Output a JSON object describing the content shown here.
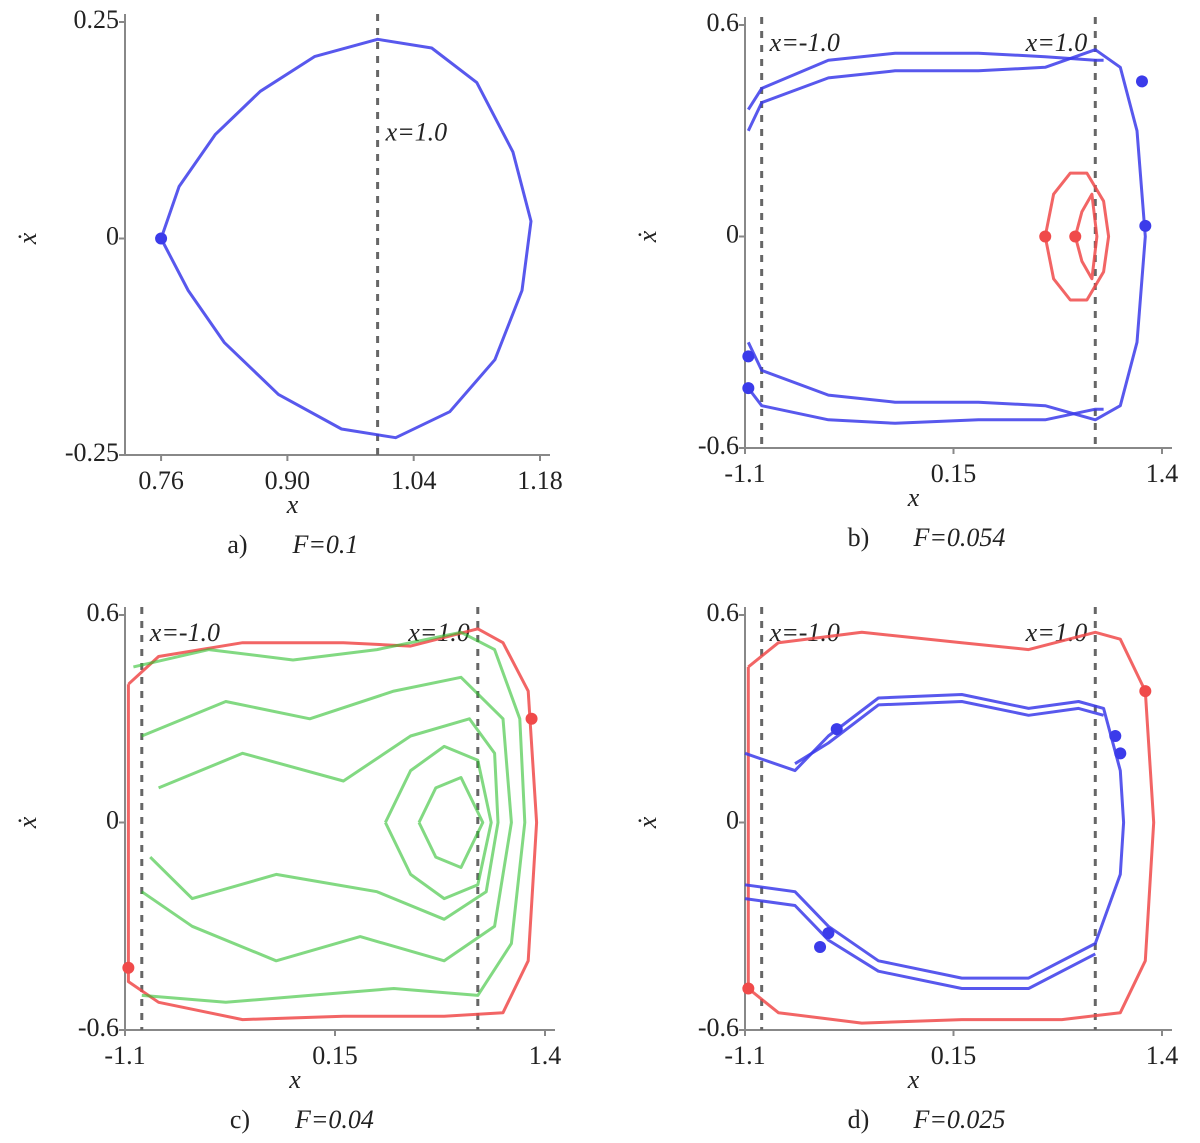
{
  "chart_data": [
    {
      "type": "line",
      "caption_letter": "a)",
      "caption": "F=0.1",
      "xlabel": "x",
      "ylabel": "ẋ",
      "xlim": [
        0.72,
        1.18
      ],
      "ylim": [
        -0.25,
        0.25
      ],
      "xticks": [
        0.76,
        {
          "value": 0.9,
          "label": "0.90"
        },
        1.04,
        1.18
      ],
      "yticks": [
        -0.25,
        0,
        0.25
      ],
      "vlines": [
        {
          "x": 1.0,
          "label": "x=1.0"
        }
      ],
      "series": [
        {
          "color": "#3b3bea",
          "x": [
            0.76,
            0.78,
            0.82,
            0.87,
            0.93,
            1.0,
            1.06,
            1.11,
            1.15,
            1.17,
            1.16,
            1.13,
            1.08,
            1.02,
            0.96,
            0.89,
            0.83,
            0.79,
            0.76
          ],
          "values": [
            0,
            0.06,
            0.12,
            0.17,
            0.21,
            0.23,
            0.22,
            0.18,
            0.1,
            0.02,
            -0.06,
            -0.14,
            -0.2,
            -0.23,
            -0.22,
            -0.18,
            -0.12,
            -0.06,
            0
          ]
        }
      ],
      "points": [
        {
          "color": "#3b3bea",
          "x": [
            0.76
          ],
          "values": [
            0
          ]
        }
      ]
    },
    {
      "type": "line",
      "caption_letter": "b)",
      "caption": "F=0.054",
      "xlabel": "x",
      "ylabel": "ẋ",
      "xlim": [
        -1.1,
        1.4
      ],
      "ylim": [
        -0.6,
        0.6
      ],
      "xticks": [
        -1.1,
        0.15,
        1.4
      ],
      "yticks": [
        -0.6,
        0,
        0.6
      ],
      "vlines": [
        {
          "x": -1.0,
          "label": "x=-1.0"
        },
        {
          "x": 1.0,
          "label": "x=1.0"
        }
      ],
      "series": [
        {
          "color": "#3b3bea",
          "x": [
            -1.08,
            -1.0,
            -0.6,
            -0.2,
            0.3,
            0.7,
            1.0,
            1.15,
            1.25,
            1.3,
            1.25,
            1.15,
            1.0,
            0.7,
            0.3,
            -0.2,
            -0.6,
            -1.0,
            -1.08
          ],
          "values": [
            0.3,
            0.38,
            0.45,
            0.47,
            0.47,
            0.48,
            0.53,
            0.48,
            0.3,
            0,
            -0.3,
            -0.48,
            -0.52,
            -0.48,
            -0.47,
            -0.47,
            -0.45,
            -0.38,
            -0.3
          ]
        },
        {
          "color": "#3b3bea",
          "x": [
            -1.08,
            -1.0,
            -0.6,
            -0.2,
            0.3,
            0.7,
            1.0,
            1.05
          ],
          "values": [
            0.36,
            0.42,
            0.5,
            0.52,
            0.52,
            0.51,
            0.5,
            0.5
          ]
        },
        {
          "color": "#3b3bea",
          "x": [
            -1.08,
            -1.0,
            -0.6,
            -0.2,
            0.3,
            0.7,
            1.0,
            1.05
          ],
          "values": [
            -0.43,
            -0.48,
            -0.52,
            -0.53,
            -0.52,
            -0.52,
            -0.49,
            -0.49
          ]
        },
        {
          "color": "#f04a4a",
          "x": [
            0.7,
            0.75,
            0.85,
            0.95,
            1.05,
            1.08,
            1.05,
            0.95,
            0.85,
            0.75,
            0.7
          ],
          "values": [
            0,
            0.12,
            0.18,
            0.18,
            0.1,
            0,
            -0.1,
            -0.18,
            -0.18,
            -0.12,
            0
          ]
        },
        {
          "color": "#f04a4a",
          "x": [
            0.88,
            0.92,
            0.98,
            1.01,
            0.98,
            0.92,
            0.88
          ],
          "values": [
            0,
            0.07,
            0.12,
            0,
            -0.12,
            -0.07,
            0
          ]
        }
      ],
      "points": [
        {
          "color": "#3b3bea",
          "x": [
            1.28,
            1.3,
            -1.08,
            -1.08
          ],
          "values": [
            0.44,
            0.03,
            -0.34,
            -0.43
          ]
        },
        {
          "color": "#f04a4a",
          "x": [
            0.7,
            0.88
          ],
          "values": [
            0,
            0
          ]
        }
      ]
    },
    {
      "type": "line",
      "caption_letter": "c)",
      "caption": "F=0.04",
      "xlabel": "x",
      "ylabel": "ẋ",
      "xlim": [
        -1.1,
        1.4
      ],
      "ylim": [
        -0.6,
        0.6
      ],
      "xticks": [
        -1.1,
        0.15,
        1.4
      ],
      "yticks": [
        -0.6,
        0,
        0.6
      ],
      "vlines": [
        {
          "x": -1.0,
          "label": "x=-1.0"
        },
        {
          "x": 1.0,
          "label": "x=1.0"
        }
      ],
      "series": [
        {
          "color": "#f04a4a",
          "x": [
            -1.08,
            -0.9,
            -0.4,
            0.2,
            0.6,
            1.0,
            1.15,
            1.3,
            1.35,
            1.3,
            1.15,
            0.8,
            0.2,
            -0.4,
            -0.9,
            -1.08,
            -1.08
          ],
          "values": [
            0.4,
            0.48,
            0.52,
            0.52,
            0.51,
            0.56,
            0.52,
            0.38,
            0,
            -0.4,
            -0.55,
            -0.56,
            -0.56,
            -0.57,
            -0.52,
            -0.46,
            0.4
          ]
        },
        {
          "color": "#2ec02e",
          "x": [
            -1.05,
            -0.6,
            -0.1,
            0.4,
            0.9,
            1.1,
            1.25,
            1.28,
            1.2,
            1.0,
            0.5,
            0.0,
            -0.5,
            -1.0
          ],
          "values": [
            0.45,
            0.5,
            0.47,
            0.5,
            0.55,
            0.5,
            0.3,
            0,
            -0.35,
            -0.5,
            -0.48,
            -0.5,
            -0.52,
            -0.5
          ]
        },
        {
          "color": "#2ec02e",
          "x": [
            -1.0,
            -0.5,
            0.0,
            0.5,
            0.9,
            1.15,
            1.2,
            1.1,
            0.8,
            0.3,
            -0.2,
            -0.7,
            -1.0
          ],
          "values": [
            0.25,
            0.35,
            0.3,
            0.38,
            0.42,
            0.3,
            0,
            -0.3,
            -0.4,
            -0.33,
            -0.4,
            -0.3,
            -0.2
          ]
        },
        {
          "color": "#2ec02e",
          "x": [
            -0.9,
            -0.4,
            0.2,
            0.6,
            0.95,
            1.1,
            1.12,
            1.05,
            0.8,
            0.4,
            -0.2,
            -0.7,
            -0.95
          ],
          "values": [
            0.1,
            0.2,
            0.12,
            0.25,
            0.3,
            0.2,
            0,
            -0.2,
            -0.28,
            -0.2,
            -0.15,
            -0.22,
            -0.1
          ]
        },
        {
          "color": "#2ec02e",
          "x": [
            0.45,
            0.6,
            0.8,
            1.0,
            1.08,
            1.0,
            0.8,
            0.6,
            0.45
          ],
          "values": [
            0,
            0.15,
            0.22,
            0.18,
            0,
            -0.18,
            -0.22,
            -0.15,
            0
          ]
        },
        {
          "color": "#2ec02e",
          "x": [
            0.65,
            0.75,
            0.9,
            1.03,
            0.9,
            0.75,
            0.65
          ],
          "values": [
            0,
            0.1,
            0.13,
            0,
            -0.13,
            -0.1,
            0
          ]
        }
      ],
      "points": [
        {
          "color": "#f04a4a",
          "x": [
            1.32,
            -1.08
          ],
          "values": [
            0.3,
            -0.42
          ]
        }
      ]
    },
    {
      "type": "line",
      "caption_letter": "d)",
      "caption": "F=0.025",
      "xlabel": "x",
      "ylabel": "ẋ",
      "xlim": [
        -1.1,
        1.4
      ],
      "ylim": [
        -0.6,
        0.6
      ],
      "xticks": [
        -1.1,
        0.15,
        1.4
      ],
      "yticks": [
        -0.6,
        0,
        0.6
      ],
      "vlines": [
        {
          "x": -1.0,
          "label": "x=-1.0"
        },
        {
          "x": 1.0,
          "label": "x=1.0"
        }
      ],
      "series": [
        {
          "color": "#f04a4a",
          "x": [
            -1.08,
            -0.9,
            -0.4,
            0.2,
            0.6,
            1.0,
            1.15,
            1.3,
            1.35,
            1.3,
            1.15,
            0.8,
            0.2,
            -0.4,
            -0.9,
            -1.08,
            -1.08
          ],
          "values": [
            0.45,
            0.52,
            0.55,
            0.52,
            0.5,
            0.55,
            0.53,
            0.38,
            0,
            -0.4,
            -0.55,
            -0.57,
            -0.57,
            -0.58,
            -0.55,
            -0.48,
            0.45
          ]
        },
        {
          "color": "#3b3bea",
          "x": [
            -1.1,
            -0.8,
            -0.6,
            -0.3,
            0.2,
            0.6,
            0.9,
            1.05,
            1.15,
            1.17,
            1.15,
            1.0,
            0.6,
            0.2,
            -0.3,
            -0.6,
            -0.8,
            -1.1
          ],
          "values": [
            0.2,
            0.15,
            0.25,
            0.36,
            0.37,
            0.33,
            0.35,
            0.33,
            0.15,
            0,
            -0.15,
            -0.35,
            -0.45,
            -0.45,
            -0.4,
            -0.3,
            -0.2,
            -0.18
          ]
        },
        {
          "color": "#3b3bea",
          "x": [
            -0.8,
            -0.6,
            -0.3,
            0.2,
            0.6,
            0.9,
            1.05
          ],
          "values": [
            0.17,
            0.23,
            0.34,
            0.35,
            0.31,
            0.33,
            0.31
          ]
        },
        {
          "color": "#3b3bea",
          "x": [
            -1.1,
            -0.8,
            -0.6,
            -0.3,
            0.2,
            0.6,
            1.0
          ],
          "values": [
            -0.22,
            -0.24,
            -0.34,
            -0.43,
            -0.48,
            -0.48,
            -0.38
          ]
        }
      ],
      "points": [
        {
          "color": "#f04a4a",
          "x": [
            1.3,
            -1.08
          ],
          "values": [
            0.38,
            -0.48
          ]
        },
        {
          "color": "#3b3bea",
          "x": [
            -0.55,
            1.12,
            1.15,
            -0.6,
            -0.65
          ],
          "values": [
            0.27,
            0.25,
            0.2,
            -0.32,
            -0.36
          ]
        }
      ]
    }
  ]
}
